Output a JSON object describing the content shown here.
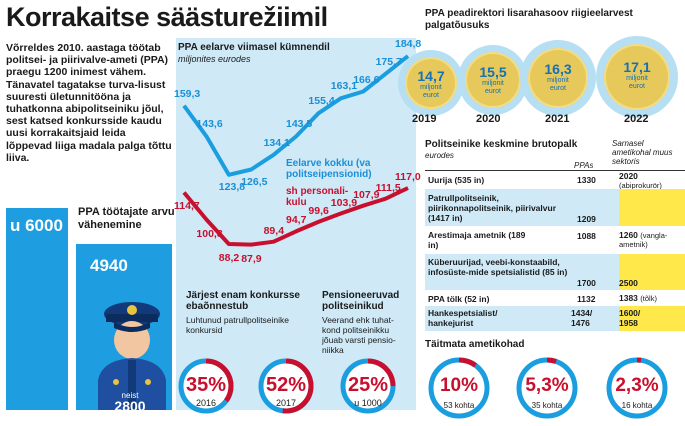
{
  "title": "Korrakaitse säästurežiimil",
  "intro": {
    "p1": "Võrreldes 2010. aastaga töötab politsei- ja piirivalve-ameti (PPA) praegu 1200 inimest vähem.",
    "p2": "Tänavatel tagatakse turva-lisust suuresti ületunnitööna ja tuhatkonna abipolitseiniku jõul, sest katsed konkursside kaudu uusi korrakaitsjaid leida lõppevad liiga madala palga tõttu liiva."
  },
  "headcount": {
    "title": "PPA töötajate arvu vähenemine",
    "before": "u 6000",
    "after": "4940",
    "before_value": 6000,
    "after_value": 4940,
    "figure_label": "neist",
    "figure_value": "2800"
  },
  "budget_chart": {
    "title": "PPA eelarve viimasel kümnendil",
    "subtitle": "miljonites eurodes",
    "chart_data": {
      "type": "line",
      "title": "PPA eelarve viimasel kümnendil",
      "ylabel": "miljonites eurodes",
      "series": [
        {
          "name": "Eelarve kokku (va politseipensionid)",
          "color": "#1a9ee0",
          "values": [
            159.3,
            143.6,
            123.8,
            126.5,
            134.1,
            143.5,
            155.4,
            163.1,
            166.6,
            175.7,
            184.8
          ]
        },
        {
          "name": "sh personali-kulu",
          "color": "#c8102e",
          "values": [
            114.7,
            100.8,
            88.2,
            87.9,
            89.4,
            94.7,
            99.6,
            103.9,
            107.9,
            111.5,
            117.0
          ]
        }
      ],
      "blue_labels": [
        "159,3",
        "143,6",
        "123,8",
        "126,5",
        "134,1",
        "143,5",
        "155,4",
        "163,1",
        "166,6",
        "175,7",
        "184,8"
      ],
      "red_labels": [
        "114,7",
        "100,8",
        "88,2",
        "87,9",
        "89,4",
        "94,7",
        "99,6",
        "103,9",
        "107,9",
        "111,5",
        "117,0"
      ]
    },
    "legend_blue": "Eelarve kokku (va politseipensionid)",
    "legend_red": "sh personali-kulu"
  },
  "subs": [
    {
      "heading": "Järjest enam konkursse ebaõnnestub",
      "text": "Luhtunud patrullpolitseinike konkursid"
    },
    {
      "heading": "",
      "text": ""
    },
    {
      "heading": "Pensioneeruvad politseinikud",
      "text": "Veerand ehk tuhat-kond politseinikku jõuab varsti pensio-niikka"
    }
  ],
  "rings": [
    {
      "value": "35%",
      "label": "2016",
      "percent": 35
    },
    {
      "value": "52%",
      "label": "2017",
      "percent": 52
    },
    {
      "value": "25%",
      "label": "u 1000",
      "percent": 25
    }
  ],
  "salary": {
    "title": "PPA peadirektori lisarahasoov riigieelarvest palgatõusuks",
    "unit": "miljonit eurot",
    "coins": [
      {
        "value": "14,7",
        "unit1": "miljonit",
        "unit2": "eurot",
        "year": "2019"
      },
      {
        "value": "15,5",
        "unit1": "miljonit",
        "unit2": "eurot",
        "year": "2020"
      },
      {
        "value": "16,3",
        "unit1": "miljonit",
        "unit2": "eurot",
        "year": "2021"
      },
      {
        "value": "17,1",
        "unit1": "miljonit",
        "unit2": "eurot",
        "year": "2022"
      }
    ]
  },
  "table": {
    "title": "Politseinike keskmine brutopalk",
    "subtitle": "eurodes",
    "col_ppa": "PPAs",
    "col_market": "Sarnasel ametikohal muus sektoris",
    "rows": [
      {
        "label": "Uurija (535 in)",
        "ppa": "1330",
        "market": "2020",
        "market_note": "(abiprokurör)",
        "highlight": false
      },
      {
        "label": "Patrullpolitseinik, piirikonnapolitseinik, piirivalvur (1417 in)",
        "ppa": "1209",
        "market": "",
        "market_note": "",
        "highlight": true
      },
      {
        "label": "Arestimaja ametnik (189 in)",
        "ppa": "1088",
        "market": "1260",
        "market_note": "(vangla-ametnik)",
        "highlight": false
      },
      {
        "label": "Küberuurijad, veebi-konstaabild, infosüste-mide spetsialistid (85 in)",
        "ppa": "1700",
        "market": "2500",
        "market_note": "",
        "highlight": true
      },
      {
        "label": "PPA tölk (52 in)",
        "ppa": "1132",
        "market": "1383",
        "market_note": "(tõlk)",
        "highlight": false
      },
      {
        "label": "Hankespetsialist/ hankejurist",
        "ppa": "1434/ 1476",
        "market": "1600/ 1958",
        "market_note": "",
        "highlight": true
      }
    ]
  },
  "vacancies": {
    "title": "Täitmata ametikohad",
    "items": [
      {
        "value": "10%",
        "label": "53 kohta",
        "percent": 10
      },
      {
        "value": "5,3%",
        "label": "35 kohta",
        "percent": 5.3
      },
      {
        "value": "2,3%",
        "label": "16 kohta",
        "percent": 2.3
      }
    ]
  }
}
